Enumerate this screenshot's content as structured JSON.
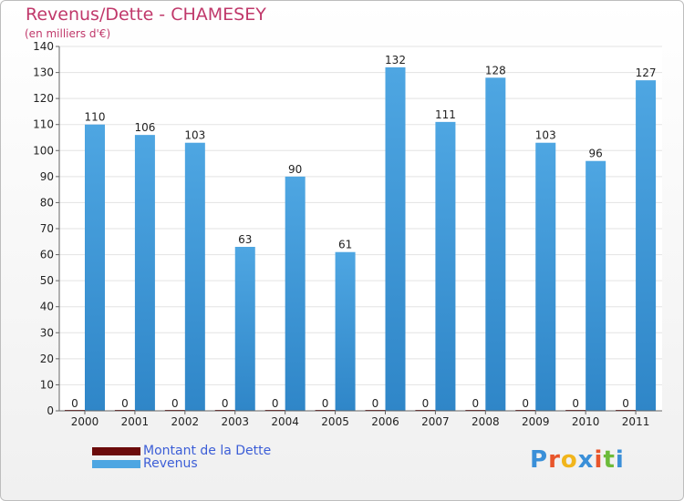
{
  "colors": {
    "title": "#c0386a",
    "revenus": "#4ea6e2",
    "revenus_dark": "#2f86c8",
    "dette": "#6b0b0b",
    "legend_text": "#3c5ed7",
    "axis_text": "#222222"
  },
  "legend": {
    "dette_label": "Montant de la Dette",
    "revenus_label": "Revenus"
  },
  "logo": {
    "text": "Proxiti"
  },
  "chart_data": {
    "type": "bar",
    "title": "Revenus/Dette - CHAMESEY",
    "subtitle": "(en milliers d'€)",
    "xlabel": "",
    "ylabel": "",
    "ylim": [
      0,
      140
    ],
    "yticks": [
      0,
      10,
      20,
      30,
      40,
      50,
      60,
      70,
      80,
      90,
      100,
      110,
      120,
      130,
      140
    ],
    "grid": true,
    "legend_position": "bottom-left",
    "categories": [
      "2000",
      "2001",
      "2002",
      "2003",
      "2004",
      "2005",
      "2006",
      "2007",
      "2008",
      "2009",
      "2010",
      "2011"
    ],
    "series": [
      {
        "name": "Montant de la Dette",
        "color": "#6b0b0b",
        "values": [
          0,
          0,
          0,
          0,
          0,
          0,
          0,
          0,
          0,
          0,
          0,
          0
        ]
      },
      {
        "name": "Revenus",
        "color": "#4ea6e2",
        "values": [
          110,
          106,
          103,
          63,
          90,
          61,
          132,
          111,
          128,
          103,
          96,
          127
        ]
      }
    ]
  }
}
